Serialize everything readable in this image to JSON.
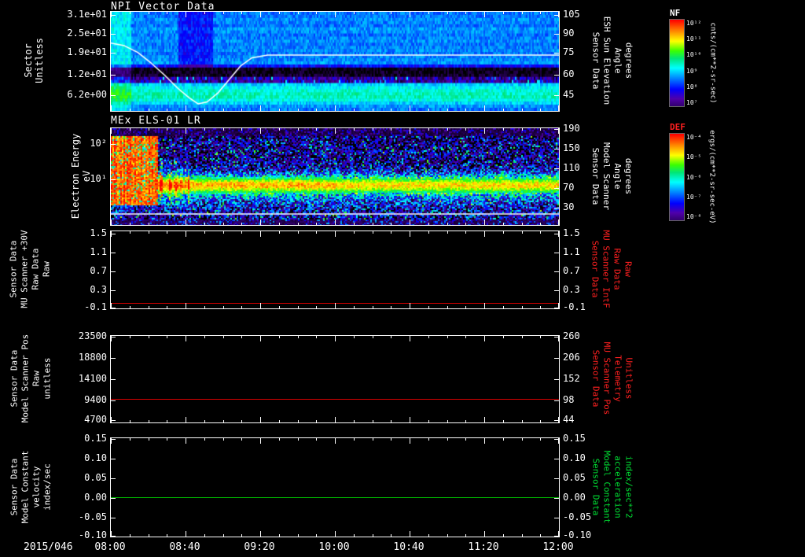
{
  "page": {
    "background": "#000000",
    "date_label": "2015/046"
  },
  "x_axis": {
    "tick_labels": [
      "08:00",
      "08:40",
      "09:20",
      "10:00",
      "10:40",
      "11:20",
      "12:00"
    ]
  },
  "colormap_stops": [
    [
      0.0,
      [
        0,
        0,
        0
      ]
    ],
    [
      0.08,
      [
        40,
        0,
        90
      ]
    ],
    [
      0.18,
      [
        80,
        0,
        170
      ]
    ],
    [
      0.28,
      [
        0,
        0,
        255
      ]
    ],
    [
      0.4,
      [
        0,
        140,
        255
      ]
    ],
    [
      0.5,
      [
        0,
        255,
        255
      ]
    ],
    [
      0.6,
      [
        0,
        230,
        120
      ]
    ],
    [
      0.68,
      [
        60,
        255,
        0
      ]
    ],
    [
      0.78,
      [
        255,
        255,
        0
      ]
    ],
    [
      0.88,
      [
        255,
        140,
        0
      ]
    ],
    [
      1.0,
      [
        255,
        0,
        0
      ]
    ]
  ],
  "chart_data": [
    {
      "type": "heatmap",
      "title": "NPI Vector Data",
      "ylabel_lines": [
        "Sector",
        "Unitless"
      ],
      "left_ticks": {
        "labels": [
          "3.1e+01",
          "2.5e+01",
          "1.9e+01",
          "1.2e+01",
          "6.2e+00"
        ],
        "fracs": [
          0.032,
          0.222,
          0.413,
          0.635,
          0.841
        ]
      },
      "right_ticks": {
        "labels": [
          "105",
          "90",
          "75",
          "60",
          "45"
        ],
        "fracs": [
          0.032,
          0.222,
          0.413,
          0.635,
          0.841
        ]
      },
      "right_label_lines": [
        "Sensor Data",
        "ESH Sun Elevation",
        "Angle",
        "degrees"
      ],
      "right_label_color": "#ffffff",
      "heatmap": {
        "rows": 32,
        "seed": 12345,
        "noise": 0.055,
        "row_levels": [
          0.38,
          0.38,
          0.4,
          0.39,
          0.38,
          0.41,
          0.4,
          0.38,
          0.39,
          0.4,
          0.38,
          0.39,
          0.4,
          0.38,
          0.39,
          0.4,
          0.41,
          0.28,
          0.02,
          0.02,
          0.03,
          0.16,
          0.17,
          0.46,
          0.5,
          0.53,
          0.55,
          0.55,
          0.52,
          0.46,
          0.41,
          0.38
        ],
        "speckle_rows": [
          21,
          22
        ],
        "dark_vband": {
          "t0": 0.149,
          "t1": 0.228,
          "row_max": 17,
          "delta": -0.1
        },
        "left_bright": {
          "t1": 0.045,
          "delta": 0.1
        }
      },
      "overlay": {
        "name": "ESH Sun Elevation Angle (deg)",
        "color": "#ffffff",
        "t": [
          0,
          0.03,
          0.06,
          0.09,
          0.12,
          0.15,
          0.175,
          0.195,
          0.215,
          0.24,
          0.265,
          0.29,
          0.315,
          0.35,
          1.0
        ],
        "v": [
          84,
          82,
          77,
          69,
          60,
          50,
          43,
          38.5,
          40,
          47,
          57,
          67,
          73,
          75,
          75
        ]
      }
    },
    {
      "type": "heatmap",
      "title": "MEx ELS-01 LR",
      "ylabel_lines": [
        "Electron Energy",
        "eV"
      ],
      "left_ticks": {
        "labels": [
          "10²",
          "10¹"
        ],
        "fracs": [
          0.163,
          0.528
        ]
      },
      "right_ticks": {
        "labels": [
          "190",
          "150",
          "110",
          "70",
          "30"
        ],
        "fracs": [
          0.008,
          0.211,
          0.415,
          0.618,
          0.821
        ]
      },
      "right_label_lines": [
        "Sensor Data",
        "Model Scanner",
        "Angle",
        "degrees"
      ],
      "right_label_color": "#ffffff",
      "heatmap": {
        "rows": 62,
        "seed": 777,
        "noise": 0.26,
        "band": {
          "center": 0.57,
          "sigma": 0.075,
          "amp": 0.62
        },
        "band2": {
          "center": 0.7,
          "sigma": 0.13,
          "amp": 0.15
        },
        "bg_level": 0.1,
        "speckle_prob": 0.16,
        "speckle_amp": 0.25,
        "burst": {
          "t1": 0.105,
          "e0": 0.06,
          "e1": 0.78,
          "amp": 0.92
        },
        "stripes": {
          "t0": 0.105,
          "t1": 0.175,
          "e0": 0.3,
          "e1": 0.78,
          "amp": 0.3
        },
        "bottom_dark": 0.92
      },
      "overlay": {
        "name": "Model Scanner Angle (deg)",
        "color": "#ffffff",
        "t": [
          0,
          1
        ],
        "v": [
          17,
          17
        ]
      }
    },
    {
      "type": "line",
      "ylabel_lines": [
        "Sensor Data",
        "MU Scanner +30V",
        "Raw Data",
        "Raw"
      ],
      "left_ticks": {
        "labels": [
          "1.5",
          "1.1",
          "0.7",
          "0.3",
          "-0.1"
        ],
        "fracs": [
          0.031,
          0.276,
          0.52,
          0.765,
          0.99
        ]
      },
      "right_ticks": {
        "labels": [
          "1.5",
          "1.1",
          "0.7",
          "0.3",
          "-0.1"
        ],
        "fracs": [
          0.031,
          0.276,
          0.52,
          0.765,
          0.99
        ]
      },
      "right_label_lines": [
        "Sensor Data",
        "MU Scanner IntF",
        "Raw Data",
        "Raw"
      ],
      "right_label_color": "#ff2020",
      "scale": {
        "v_first": 1.5,
        "v_last": -0.1
      },
      "series": [
        {
          "name": "MU Scanner IntF Raw Data",
          "color": "#dd0000",
          "value": 0.0
        }
      ]
    },
    {
      "type": "line",
      "ylabel_lines": [
        "Sensor Data",
        "Model Scanner Pos",
        "Raw",
        "unitless"
      ],
      "left_ticks": {
        "labels": [
          "23500",
          "18800",
          "14100",
          "9400",
          "4700"
        ],
        "fracs": [
          0.009,
          0.255,
          0.5,
          0.745,
          0.973
        ]
      },
      "right_ticks": {
        "labels": [
          "260",
          "206",
          "152",
          "98",
          "44"
        ],
        "fracs": [
          0.009,
          0.255,
          0.5,
          0.745,
          0.973
        ]
      },
      "right_label_lines": [
        "Sensor Data",
        "MU Scanner Pos",
        "Telemetry",
        "Unitless"
      ],
      "right_label_color": "#ff2020",
      "scale": {
        "v_first": 23500,
        "v_last": 4700
      },
      "series": [
        {
          "name": "Model Scanner Pos Raw",
          "color": "#dd0000",
          "value": 9500
        }
      ]
    },
    {
      "type": "line",
      "ylabel_lines": [
        "Sensor Data",
        "Model Constant",
        "velocity",
        "index/sec"
      ],
      "left_ticks": {
        "labels": [
          "0.15",
          "0.10",
          "0.05",
          "0.00",
          "-0.05",
          "-0.10"
        ],
        "fracs": [
          0.008,
          0.208,
          0.408,
          0.608,
          0.808,
          0.992
        ]
      },
      "right_ticks": {
        "labels": [
          "0.15",
          "0.10",
          "0.05",
          "0.00",
          "-0.05",
          "-0.10"
        ],
        "fracs": [
          0.008,
          0.208,
          0.408,
          0.608,
          0.808,
          0.992
        ]
      },
      "right_label_lines": [
        "Sensor Data",
        "Model Constant",
        "acceleration",
        "index/sec**2"
      ],
      "right_label_color": "#00dd33",
      "scale": {
        "v_first": 0.15,
        "v_last": -0.1
      },
      "series": [
        {
          "name": "Model Constant velocity",
          "color": "#00b400",
          "value": 0.0
        }
      ]
    }
  ],
  "colorbars": [
    {
      "name": "NF",
      "label_color": "#ffffff",
      "tick_labels": [
        "10¹²",
        "10¹¹",
        "10¹⁰",
        "10⁹",
        "10⁸",
        "10⁷"
      ],
      "units": "cnts/(cm**2-sr-sec)"
    },
    {
      "name": "DEF",
      "label_color": "#ff2020",
      "tick_labels": [
        "10⁻⁴",
        "10⁻⁵",
        "10⁻⁶",
        "10⁻⁷",
        "10⁻⁸"
      ],
      "units": "ergs/(cm**2-sr-sec-eV)"
    }
  ]
}
